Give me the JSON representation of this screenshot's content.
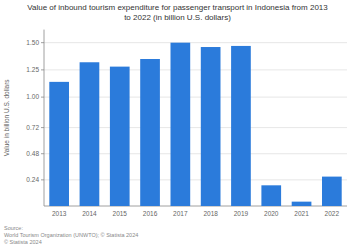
{
  "chart_data": {
    "type": "bar",
    "title": "Value of inbound tourism expenditure for passenger transport in Indonesia from 2013\nto 2022 (in billion U.S. dollars)",
    "categories": [
      "2013",
      "2014",
      "2015",
      "2016",
      "2017",
      "2018",
      "2019",
      "2020",
      "2021",
      "2022"
    ],
    "values": [
      1.14,
      1.32,
      1.28,
      1.35,
      1.5,
      1.46,
      1.47,
      0.19,
      0.04,
      0.27
    ],
    "color": "#2b7bdb",
    "y_label": "Value in billion U.S. dollars",
    "ylim": [
      0,
      1.62
    ],
    "yticks": [
      0.24,
      0.48,
      0.72,
      {
        "value": 1.0,
        "label": "1.00"
      },
      1.25,
      {
        "value": 1.5,
        "label": "1.50"
      }
    ],
    "grid": true,
    "source": "Source:\nWorld Tourism Organization (UNWTO); © Statista 2024\n© Statista 2024"
  }
}
